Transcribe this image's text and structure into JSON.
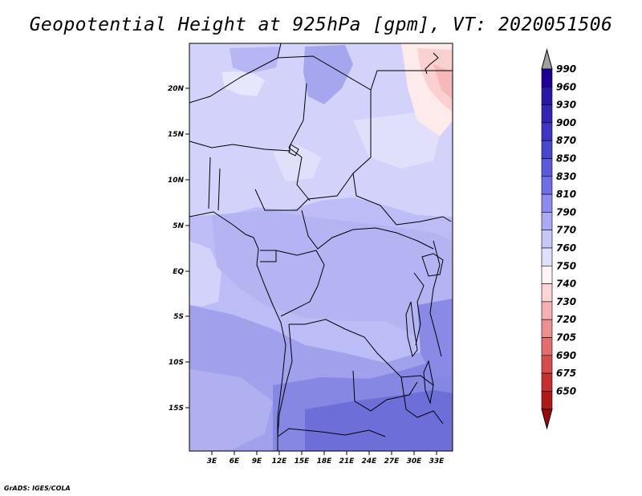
{
  "title": "Geopotential Height at 925hPa [gpm], VT: 2020051506",
  "credit": "GrADS: IGES/COLA",
  "map": {
    "lat_labels": [
      "20N",
      "15N",
      "10N",
      "5N",
      "EQ",
      "5S",
      "10S",
      "15S"
    ],
    "lon_labels": [
      "3E",
      "6E",
      "9E",
      "12E",
      "15E",
      "18E",
      "21E",
      "24E",
      "27E",
      "30E",
      "33E"
    ],
    "background_color": "#bcbcf6"
  },
  "colorbar": {
    "labels": [
      "990",
      "960",
      "930",
      "900",
      "870",
      "850",
      "830",
      "810",
      "790",
      "770",
      "760",
      "750",
      "740",
      "730",
      "720",
      "705",
      "690",
      "675",
      "650"
    ],
    "colors": [
      "#1e0096",
      "#2816a8",
      "#3424b6",
      "#3d35c3",
      "#4848cf",
      "#5a5add",
      "#6e6ee6",
      "#8c8cf0",
      "#aaaaf6",
      "#c6c6f8",
      "#e0e0fb",
      "#fff4f4",
      "#fcd4d4",
      "#f6b0b0",
      "#ee8e8e",
      "#e46e6e",
      "#d84c4c",
      "#c83030",
      "#b01818",
      "#9a0a0a"
    ],
    "top_triangle_color": "#a0a0a0"
  }
}
